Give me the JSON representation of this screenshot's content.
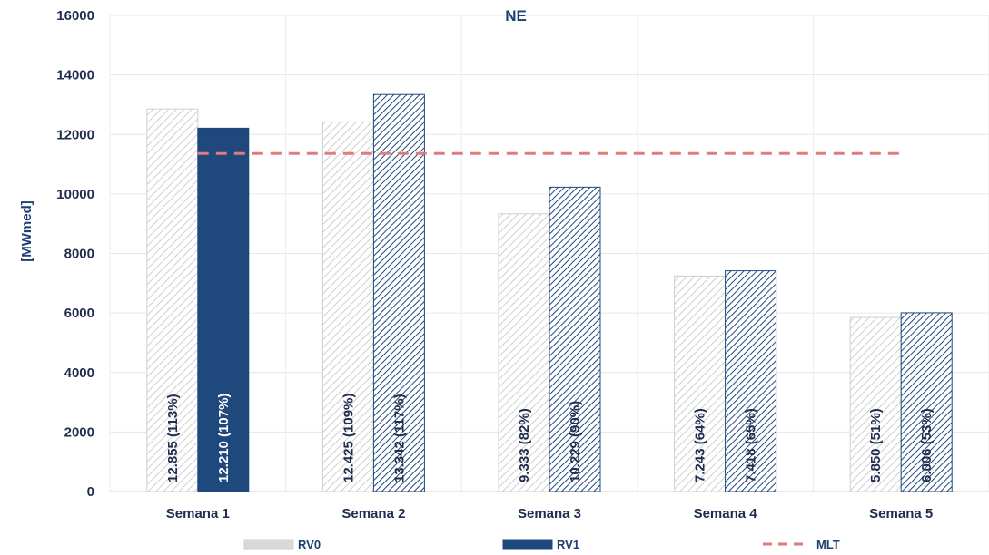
{
  "chart_data": {
    "type": "bar",
    "title": "NE",
    "xlabel": "",
    "ylabel": "[MWmed]",
    "ylim": [
      0,
      16000
    ],
    "yticks": [
      0,
      2000,
      4000,
      6000,
      8000,
      10000,
      12000,
      14000,
      16000
    ],
    "grid": true,
    "legend_position": "bottom",
    "categories": [
      "Semana 1",
      "Semana 2",
      "Semana 3",
      "Semana 4",
      "Semana 5"
    ],
    "series": [
      {
        "name": "RV0",
        "values": [
          12855,
          12425,
          9333,
          7243,
          5850
        ],
        "labels": [
          "12.855 (113%)",
          "12.425 (109%)",
          "9.333 (82%)",
          "7.243 (64%)",
          "5.850 (51%)"
        ],
        "color": "#d9d9d9"
      },
      {
        "name": "RV1",
        "values": [
          12210,
          13342,
          10229,
          7418,
          6006
        ],
        "labels": [
          "12.210 (107%)",
          "13.342 (117%)",
          "10.229 (90%)",
          "7.418 (65%)",
          "6.006 (53%)"
        ],
        "color": "#1f497d"
      },
      {
        "name": "MLT",
        "type": "line",
        "style": "dashed",
        "values": [
          11360,
          11360,
          11360,
          11360,
          11360
        ],
        "color": "#e07b7b"
      }
    ]
  }
}
